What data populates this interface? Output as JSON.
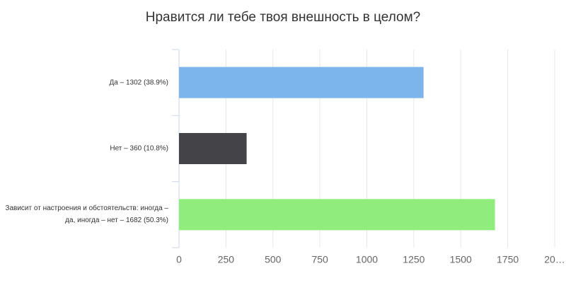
{
  "chart_data": {
    "type": "bar",
    "orientation": "horizontal",
    "title": "Нравится ли тебе твоя внешность в целом?",
    "categories": [
      "Да – 1302 (38.9%)",
      "Нет – 360 (10.8%)",
      "Зависит от настроения и обстоятельств: иногда – да, иногда – нет – 1682 (50.3%)"
    ],
    "values": [
      1302,
      360,
      1682
    ],
    "colors": [
      "#7cb5ec",
      "#434348",
      "#90ed7d"
    ],
    "xlim": [
      0,
      2000
    ],
    "xticks": [
      0,
      250,
      500,
      750,
      1000,
      1250,
      1500,
      1750,
      {
        "value": 2000,
        "label": "20…"
      }
    ],
    "grid": true
  }
}
